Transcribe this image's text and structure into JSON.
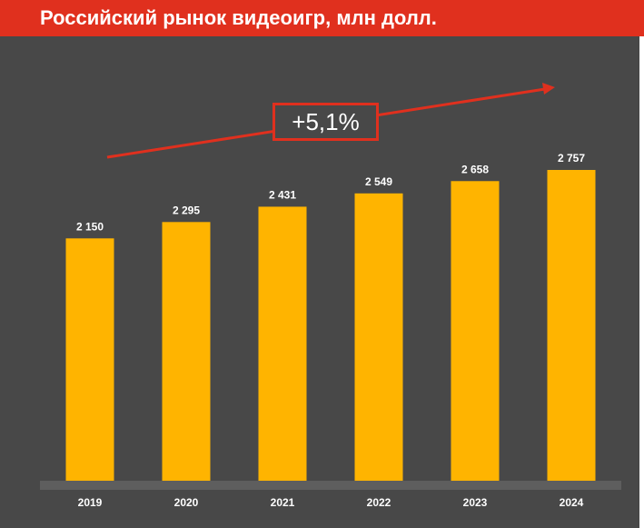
{
  "header": {
    "title": "Российский рынок видеоигр, млн долл."
  },
  "colors": {
    "header_bg": "#e0301e",
    "chart_bg": "#484848",
    "bar": "#ffb400",
    "arrow": "#e0301e",
    "axis": "#5e5e5e"
  },
  "annotation": {
    "cagr": "+5,1%"
  },
  "chart_data": {
    "type": "bar",
    "categories": [
      "2019",
      "2020",
      "2021",
      "2022",
      "2023",
      "2024"
    ],
    "values": [
      2150,
      2295,
      2431,
      2549,
      2658,
      2757
    ],
    "value_labels": [
      "2 150",
      "2 295",
      "2 431",
      "2 549",
      "2 658",
      "2 757"
    ],
    "title": "Российский рынок видеоигр, млн долл.",
    "xlabel": "",
    "ylabel": "",
    "ylim": [
      0,
      2757
    ],
    "grid": false,
    "legend": "none"
  }
}
